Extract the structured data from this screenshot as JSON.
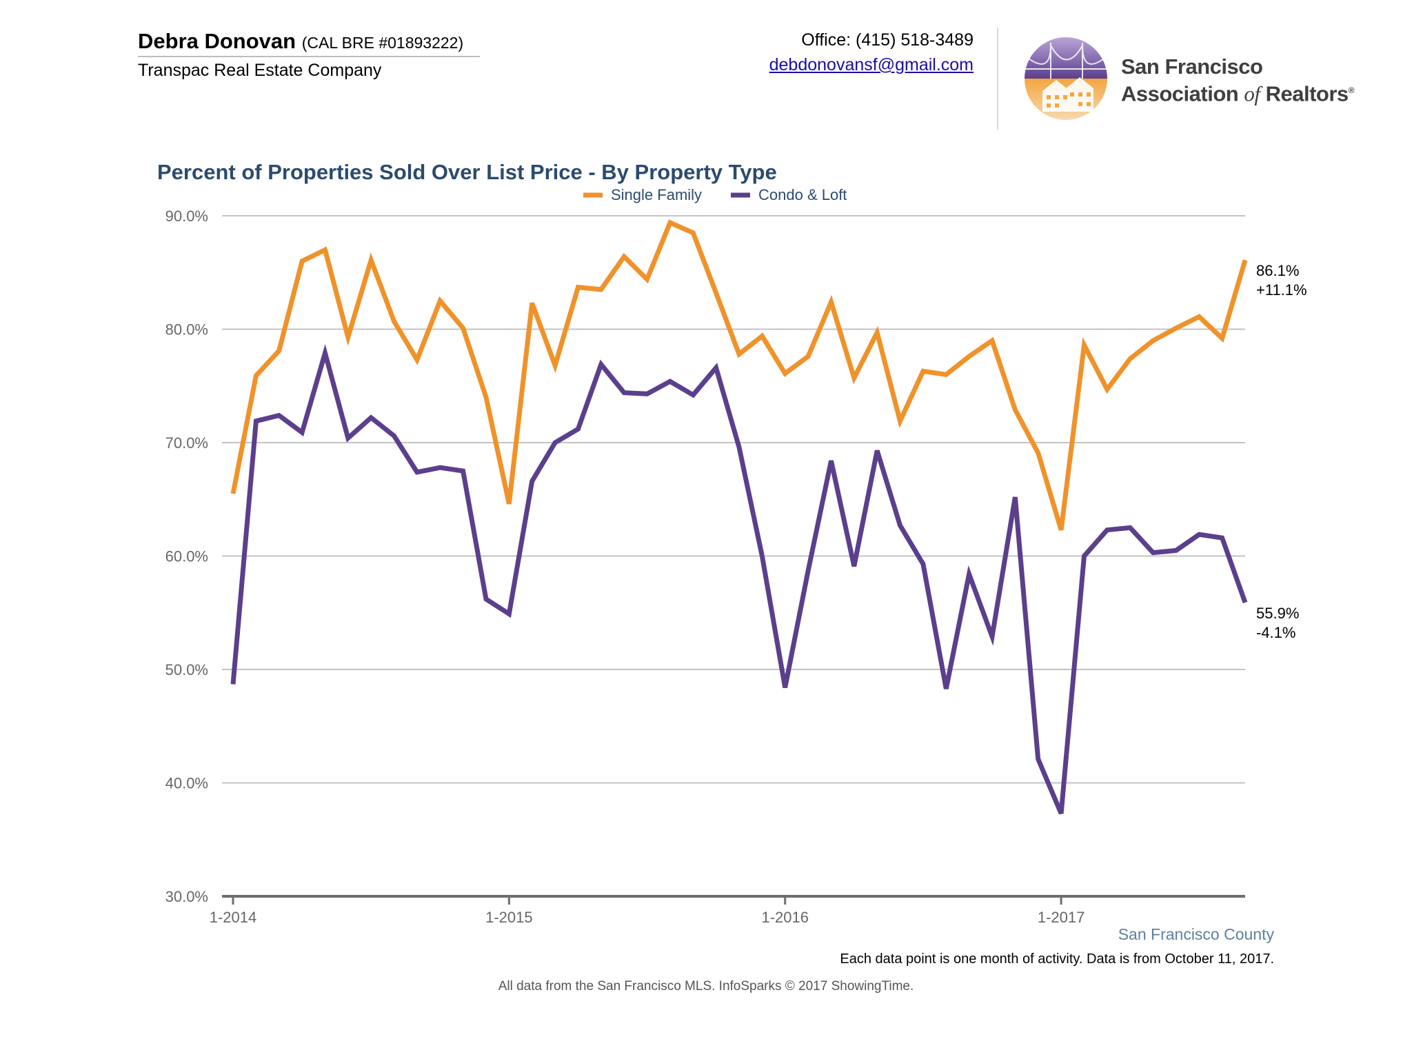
{
  "header": {
    "agent_name": "Debra Donovan",
    "license": "(CAL BRE #01893222)",
    "company": "Transpac Real Estate Company",
    "office": "Office: (415) 518-3489",
    "email": "debdonovansf@gmail.com",
    "logo": {
      "line1": "San Francisco",
      "line2_a": "Association",
      "line2_of": "of",
      "line2_b": "Realtors",
      "mark": "®"
    }
  },
  "chart_data": {
    "type": "line",
    "title": "Percent of Properties Sold Over List Price - By Property Type",
    "xlabel": "",
    "ylabel": "",
    "ylim": [
      30,
      90
    ],
    "y_ticks": [
      "30.0%",
      "40.0%",
      "50.0%",
      "60.0%",
      "70.0%",
      "80.0%",
      "90.0%"
    ],
    "x_start": "1-2014",
    "x_ticks": [
      {
        "label": "1-2014",
        "index": 0
      },
      {
        "label": "1-2015",
        "index": 12
      },
      {
        "label": "1-2016",
        "index": 24
      },
      {
        "label": "1-2017",
        "index": 36
      }
    ],
    "grid": true,
    "legend_position": "top-center",
    "series": [
      {
        "name": "Single Family",
        "color": "#f0922a",
        "values": [
          65.5,
          75.9,
          78.1,
          86.0,
          87.0,
          79.3,
          86.1,
          80.7,
          77.3,
          82.5,
          80.1,
          74.0,
          64.6,
          82.3,
          76.8,
          83.7,
          83.5,
          86.4,
          84.4,
          89.4,
          88.5,
          83.2,
          77.8,
          79.4,
          76.1,
          77.6,
          82.4,
          75.7,
          79.7,
          71.9,
          76.3,
          76.0,
          77.6,
          79.0,
          72.9,
          69.1,
          62.3,
          78.6,
          74.7,
          77.4,
          79.0,
          80.1,
          81.1,
          79.2,
          86.1
        ],
        "end_label": "86.1%",
        "end_change": "+11.1%"
      },
      {
        "name": "Condo & Loft",
        "color": "#5b3f8c",
        "values": [
          48.7,
          71.9,
          72.4,
          70.9,
          77.9,
          70.4,
          72.2,
          70.6,
          67.4,
          67.8,
          67.5,
          56.2,
          54.9,
          66.6,
          70.0,
          71.2,
          76.9,
          74.4,
          74.3,
          75.4,
          74.2,
          76.6,
          69.6,
          60.0,
          48.4,
          58.7,
          68.4,
          59.1,
          69.3,
          62.7,
          59.3,
          48.3,
          58.4,
          52.9,
          65.2,
          42.1,
          37.3,
          60.0,
          62.3,
          62.5,
          60.3,
          60.5,
          61.9,
          61.6,
          55.9
        ],
        "end_label": "55.9%",
        "end_change": "-4.1%"
      }
    ]
  },
  "footer": {
    "region": "San Francisco County",
    "note": "Each data point is one month of activity. Data is from October 11, 2017.",
    "source": "All data from the San Francisco MLS. InfoSparks © 2017 ShowingTime."
  }
}
